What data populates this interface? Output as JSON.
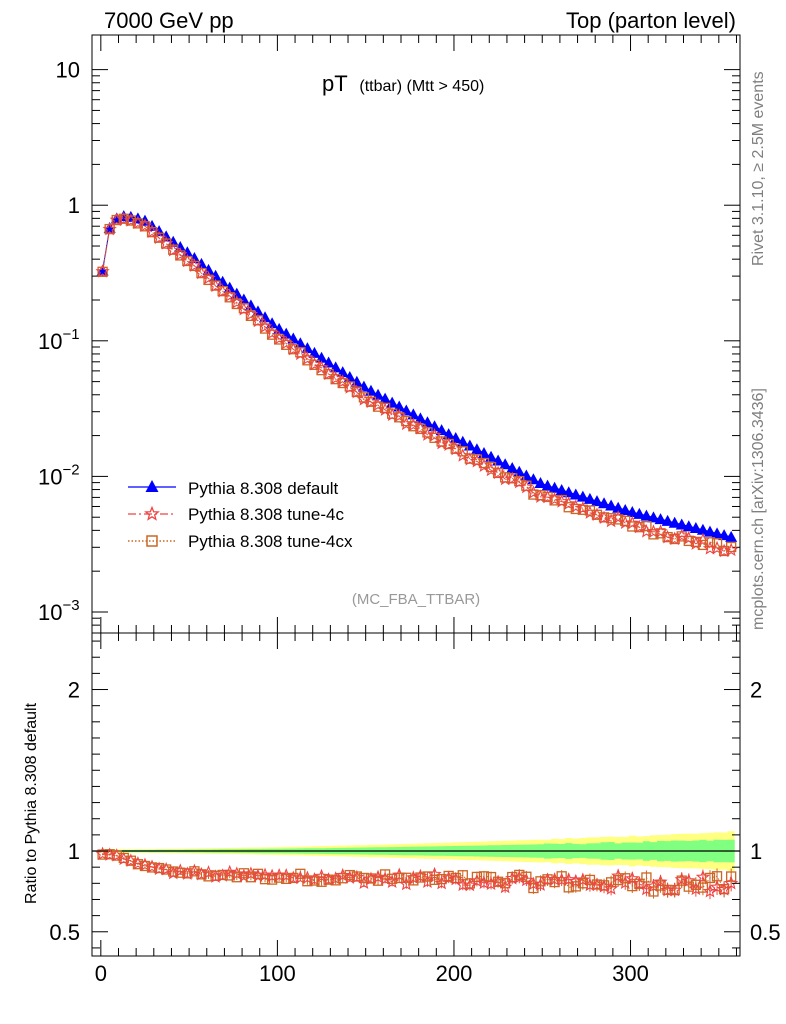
{
  "header": {
    "left": "7000 GeV pp",
    "right": "Top (parton level)"
  },
  "side_labels": {
    "rivet": "Rivet 3.1.10, ≥ 2.5M events",
    "mcplots": "mcplots.cern.ch [arXiv:1306.3436]"
  },
  "chart_data": [
    {
      "type": "line",
      "title": "pT",
      "title_sub": "(ttbar) (Mtt > 450)",
      "watermark": "(MC_FBA_TTBAR)",
      "y_scale": "log",
      "xlim": [
        -5,
        362
      ],
      "ylim": [
        0.0007,
        18
      ],
      "ytick_labels": [
        {
          "base": "10",
          "exp": "−3"
        },
        {
          "base": "10",
          "exp": "−2"
        },
        {
          "base": "10",
          "exp": "−1"
        },
        {
          "base": "1",
          "exp": ""
        },
        {
          "base": "10",
          "exp": ""
        }
      ],
      "legend_position": "middle-left",
      "series": [
        {
          "name": "Pythia 8.308 default",
          "color": "#0000ff",
          "marker": "triangle",
          "line": "solid"
        },
        {
          "name": "Pythia 8.308 tune-4c",
          "color": "#ee4444",
          "marker": "star",
          "line": "dashdot"
        },
        {
          "name": "Pythia 8.308 tune-4cx",
          "color": "#cc6622",
          "marker": "open-square",
          "line": "dotted"
        }
      ],
      "model": {
        "default_rise": [
          [
            1,
            0.33
          ],
          [
            5,
            0.68
          ],
          [
            9,
            0.8
          ],
          [
            13,
            0.83
          ],
          [
            17,
            0.82
          ],
          [
            21,
            0.8
          ]
        ],
        "default_tail": [
          [
            25,
            0.77
          ],
          [
            50,
            0.44
          ],
          [
            100,
            0.125
          ],
          [
            150,
            0.045
          ],
          [
            200,
            0.0195
          ],
          [
            250,
            0.0088
          ],
          [
            300,
            0.0055
          ],
          [
            360,
            0.0035
          ]
        ],
        "ratio_curve": [
          [
            1,
            0.98
          ],
          [
            9,
            0.97
          ],
          [
            21,
            0.92
          ],
          [
            40,
            0.875
          ],
          [
            60,
            0.855
          ],
          [
            100,
            0.84
          ],
          [
            150,
            0.83
          ],
          [
            200,
            0.82
          ],
          [
            250,
            0.81
          ],
          [
            300,
            0.8
          ],
          [
            360,
            0.79
          ]
        ],
        "bin_width": 4,
        "bin_count": 90
      }
    },
    {
      "type": "line",
      "ylabel": "Ratio to Pythia 8.308 default",
      "xlim": [
        -5,
        362
      ],
      "ylim": [
        0.35,
        2.35
      ],
      "xticks": [
        0,
        100,
        200,
        300
      ],
      "ytick_labels": [
        "0.5",
        "1",
        "2"
      ],
      "ytick_values": [
        0.5,
        1,
        2
      ],
      "bands": [
        {
          "name": "stat",
          "color": "#ffff80"
        },
        {
          "name": "syst",
          "color": "#80ff80"
        }
      ],
      "reference": 1.0,
      "band_half_width_start": 0.01,
      "band_half_width_end_outer": 0.12,
      "band_half_width_end_inner": 0.07,
      "ratio_series": [
        "Pythia 8.308 tune-4c",
        "Pythia 8.308 tune-4cx"
      ]
    }
  ]
}
